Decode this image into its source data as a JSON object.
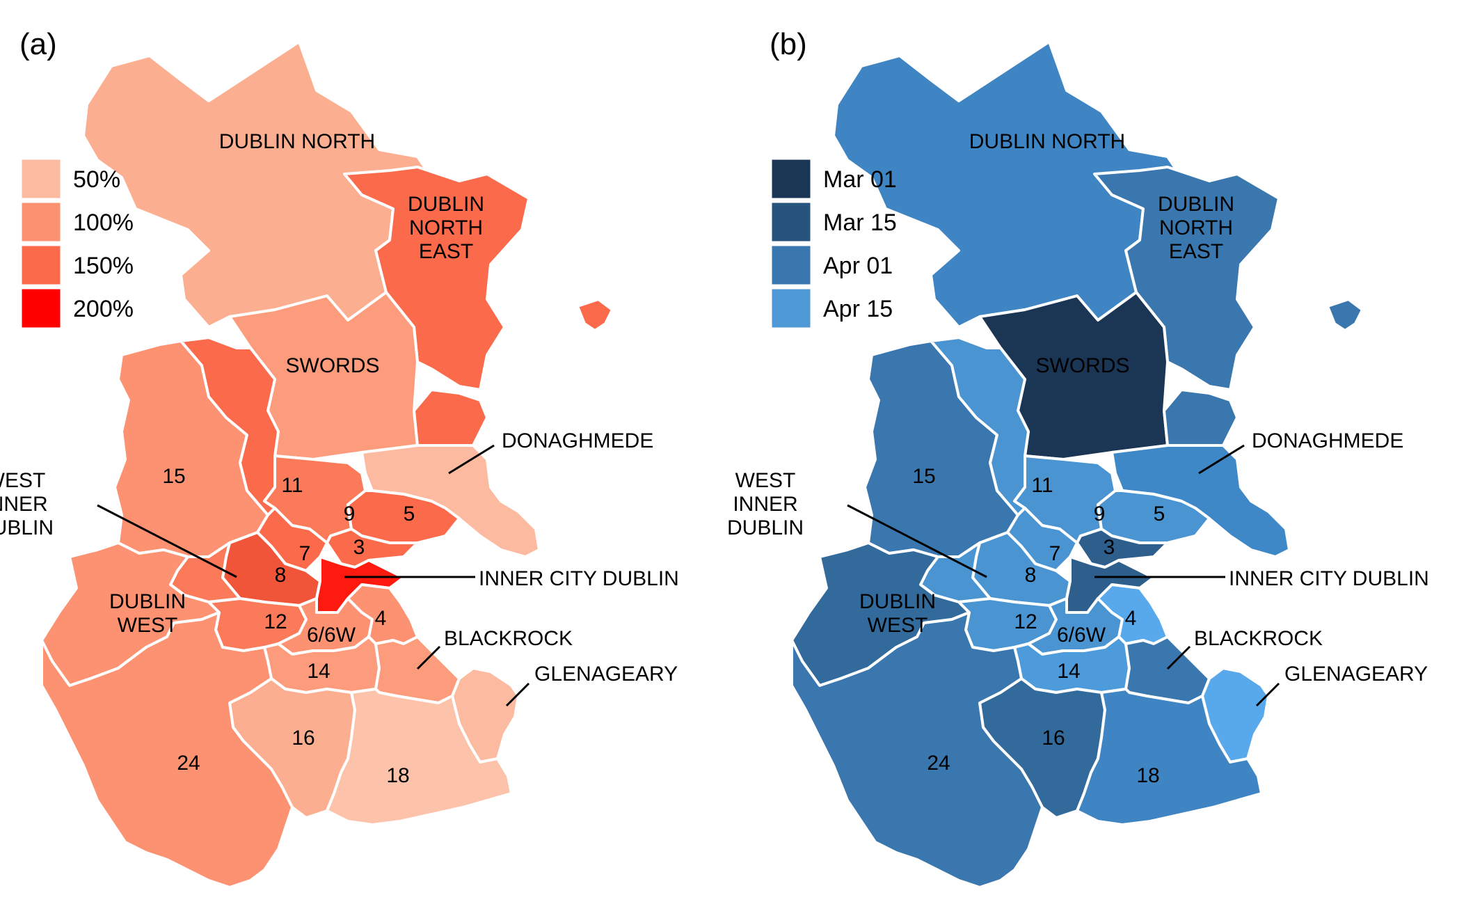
{
  "panels": [
    {
      "id": "a",
      "label": "(a)",
      "legend": [
        {
          "label": "50%",
          "color": "#FCBBA1"
        },
        {
          "label": "100%",
          "color": "#FC9272"
        },
        {
          "label": "150%",
          "color": "#FB6A4A"
        },
        {
          "label": "200%",
          "color": "#FF0000"
        }
      ],
      "region_colors": {
        "dublin_north": "#FCAE91",
        "dublin_north_east": "#FB6A4A",
        "swords": "#FC9C7C",
        "north_strip": "#FB6A4A",
        "donaghmede": "#FCBBA1",
        "d15": "#FC9272",
        "d11": "#FB6A4A",
        "d9": "#FB7A5A",
        "d5": "#FB6A4A",
        "d7": "#FB6A4A",
        "d3": "#FB6A4A",
        "d8": "#F0553A",
        "inner_city": "#FF1A10",
        "west_inner": "#FB7A5A",
        "dublin_west": "#FC9272",
        "d12": "#FB7A5A",
        "d6": "#FC9272",
        "d4": "#FC9272",
        "d14": "#FC9C7C",
        "blackrock": "#FC9C7C",
        "glenageary": "#FCBBA1",
        "d16": "#FCAE91",
        "d18": "#FCC3AA",
        "d24": "#FC9272",
        "island": "#FB6A4A"
      }
    },
    {
      "id": "b",
      "label": "(b)",
      "legend": [
        {
          "label": "Mar 01",
          "color": "#1B3555"
        },
        {
          "label": "Mar 15",
          "color": "#27547C"
        },
        {
          "label": "Apr 01",
          "color": "#3A77AE"
        },
        {
          "label": "Apr 15",
          "color": "#4D98D5"
        }
      ],
      "region_colors": {
        "dublin_north": "#3F85C3",
        "dublin_north_east": "#3A77AE",
        "swords": "#1B3555",
        "north_strip": "#3A77AE",
        "donaghmede": "#3F88C8",
        "d15": "#3A77AE",
        "d11": "#4A94D2",
        "d9": "#4A94D2",
        "d5": "#4A94D2",
        "d7": "#4A94D2",
        "d3": "#2E5F8C",
        "d8": "#4A94D2",
        "inner_city": "#2E5F8C",
        "west_inner": "#4A94D2",
        "dublin_west": "#336A9C",
        "d12": "#4A94D2",
        "d6": "#4A94D2",
        "d4": "#58A8EC",
        "d14": "#4D9BDB",
        "blackrock": "#3A77AE",
        "glenageary": "#58A8EC",
        "d16": "#336A9C",
        "d18": "#3F85C3",
        "d24": "#3A77AE",
        "island": "#3A77AE"
      }
    }
  ],
  "labels": {
    "dublin_north": "DUBLIN NORTH",
    "dublin_north_east": [
      "DUBLIN",
      "NORTH",
      "EAST"
    ],
    "swords": "SWORDS",
    "donaghmede": "DONAGHMEDE",
    "west_inner": [
      "WEST",
      "INNER",
      "DUBLIN"
    ],
    "inner_city": "INNER CITY DUBLIN",
    "dublin_west": [
      "DUBLIN",
      "WEST"
    ],
    "blackrock": "BLACKROCK",
    "glenageary": "GLENAGEARY",
    "d15": "15",
    "d11": "11",
    "d9": "9",
    "d5": "5",
    "d7": "7",
    "d3": "3",
    "d8": "8",
    "d12": "12",
    "d6": "6/6W",
    "d4": "4",
    "d14": "14",
    "d16": "16",
    "d24": "24",
    "d18": "18"
  }
}
